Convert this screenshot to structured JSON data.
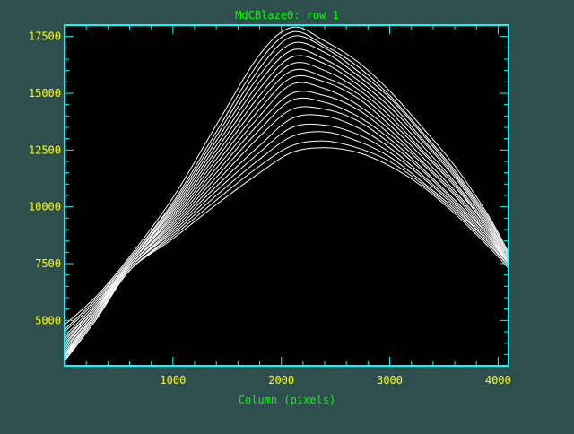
{
  "colors": {
    "background": "#2f4f4f",
    "plot_background": "#000000",
    "frame": "#00ffff",
    "text": "#00ff00",
    "tick_text": "#ffff00",
    "curves": "#ffffff"
  },
  "chart_data": {
    "type": "line",
    "title": "MdCBlaze0: row 1",
    "xlabel": "Column (pixels)",
    "ylabel": "",
    "xlim": [
      0,
      4096
    ],
    "ylim": [
      3000,
      18000
    ],
    "xticks": [
      1000,
      2000,
      3000,
      4000
    ],
    "yticks": [
      5000,
      7500,
      10000,
      12500,
      15000,
      17500
    ],
    "grid": false,
    "legend": "none",
    "x": [
      0,
      300,
      600,
      1000,
      1400,
      1800,
      2100,
      2400,
      2700,
      3000,
      3300,
      3600,
      3900,
      4096
    ],
    "series": [
      {
        "values": [
          4800,
          6100,
          7800,
          10400,
          13600,
          16700,
          17900,
          17300,
          16400,
          15100,
          13500,
          11800,
          9700,
          8000
        ]
      },
      {
        "values": [
          4600,
          6000,
          7700,
          10200,
          13300,
          16400,
          17700,
          17100,
          16200,
          14900,
          13300,
          11600,
          9600,
          7900
        ]
      },
      {
        "values": [
          4500,
          5900,
          7700,
          10100,
          13100,
          16100,
          17500,
          17000,
          16000,
          14800,
          13200,
          11500,
          9500,
          7900
        ]
      },
      {
        "values": [
          4300,
          5800,
          7600,
          10000,
          12900,
          15800,
          17200,
          16800,
          15800,
          14600,
          13000,
          11400,
          9400,
          7800
        ]
      },
      {
        "values": [
          4200,
          5700,
          7600,
          9900,
          12700,
          15500,
          16900,
          16500,
          15600,
          14400,
          12900,
          11300,
          9300,
          7800
        ]
      },
      {
        "values": [
          4100,
          5700,
          7600,
          9800,
          12500,
          15200,
          16600,
          16300,
          15400,
          14200,
          12700,
          11100,
          9200,
          7700
        ]
      },
      {
        "values": [
          4000,
          5600,
          7500,
          9700,
          12300,
          14900,
          16300,
          16000,
          15200,
          14000,
          12500,
          11000,
          9100,
          7700
        ]
      },
      {
        "values": [
          3900,
          5600,
          7500,
          9600,
          12100,
          14600,
          16000,
          15700,
          15000,
          13800,
          12400,
          10900,
          9100,
          7700
        ]
      },
      {
        "values": [
          3800,
          5500,
          7500,
          9500,
          11900,
          14300,
          15700,
          15500,
          14800,
          13600,
          12200,
          10700,
          9000,
          7600
        ]
      },
      {
        "values": [
          3700,
          5500,
          7400,
          9400,
          11700,
          14000,
          15400,
          15200,
          14500,
          13400,
          12000,
          10600,
          8900,
          7600
        ]
      },
      {
        "values": [
          3600,
          5400,
          7400,
          9300,
          11500,
          13700,
          15000,
          14900,
          14300,
          13200,
          11900,
          10500,
          8800,
          7600
        ]
      },
      {
        "values": [
          3500,
          5400,
          7400,
          9200,
          11300,
          13400,
          14700,
          14600,
          14000,
          13000,
          11700,
          10300,
          8800,
          7500
        ]
      },
      {
        "values": [
          3450,
          5300,
          7300,
          9100,
          11100,
          13100,
          14300,
          14300,
          13800,
          12800,
          11600,
          10200,
          8700,
          7500
        ]
      },
      {
        "values": [
          3400,
          5300,
          7300,
          9000,
          10900,
          12700,
          13900,
          14000,
          13500,
          12600,
          11400,
          10100,
          8600,
          7500
        ]
      },
      {
        "values": [
          3350,
          5200,
          7300,
          8900,
          10700,
          12400,
          13500,
          13600,
          13200,
          12400,
          11300,
          10000,
          8500,
          7400
        ]
      },
      {
        "values": [
          3300,
          5200,
          7200,
          8800,
          10500,
          12100,
          13100,
          13300,
          12900,
          12200,
          11100,
          9900,
          8500,
          7400
        ]
      },
      {
        "values": [
          3250,
          5100,
          7200,
          8700,
          10300,
          11800,
          12700,
          12900,
          12600,
          12000,
          11000,
          9800,
          8400,
          7400
        ]
      },
      {
        "values": [
          3200,
          5100,
          7200,
          8600,
          10100,
          11500,
          12400,
          12600,
          12400,
          11800,
          10900,
          9700,
          8300,
          7300
        ]
      }
    ]
  }
}
